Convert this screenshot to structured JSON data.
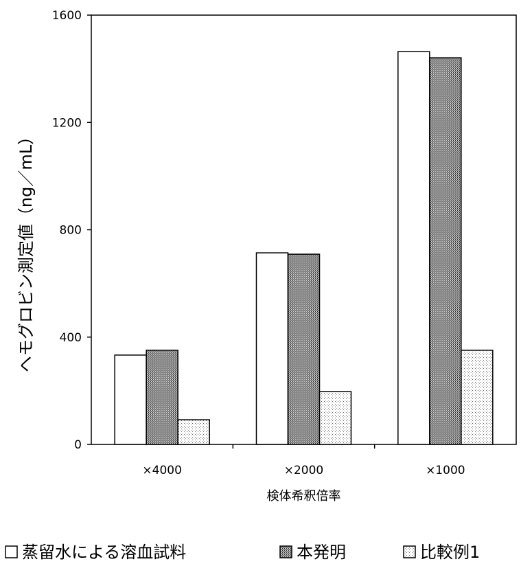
{
  "chart_data": {
    "type": "bar",
    "title": "",
    "xlabel": "検体希釈倍率",
    "ylabel": "ヘモグロビン測定値（ng／mL）",
    "ylim": [
      0,
      1600
    ],
    "yticks": [
      0,
      400,
      800,
      1200,
      1600
    ],
    "grid": false,
    "categories": [
      "×4000",
      "×2000",
      "×1000"
    ],
    "series": [
      {
        "name": "蒸留水による溶血試料",
        "values": [
          333,
          714,
          1464
        ],
        "fill": "white"
      },
      {
        "name": "本発明",
        "values": [
          351,
          709,
          1441
        ],
        "fill": "dense-hatch"
      },
      {
        "name": "比較例1",
        "values": [
          92,
          197,
          351
        ],
        "fill": "light-dots"
      }
    ],
    "legend_position": "bottom"
  }
}
